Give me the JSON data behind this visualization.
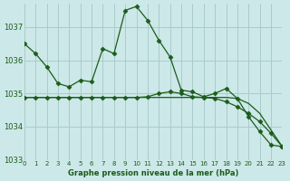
{
  "title": "Graphe pression niveau de la mer (hPa)",
  "background_color": "#cde8e8",
  "grid_color": "#aacccc",
  "line_color": "#1a5c1a",
  "text_color": "#1a5c1a",
  "xlim": [
    0,
    23
  ],
  "ylim": [
    1033,
    1037.7
  ],
  "yticks": [
    1033,
    1034,
    1035,
    1036,
    1037
  ],
  "xticks": [
    0,
    1,
    2,
    3,
    4,
    5,
    6,
    7,
    8,
    9,
    10,
    11,
    12,
    13,
    14,
    15,
    16,
    17,
    18,
    19,
    20,
    21,
    22,
    23
  ],
  "series1_x": [
    0,
    1,
    2,
    3,
    4,
    5,
    6,
    7,
    8,
    9,
    10,
    11,
    12,
    13,
    14,
    15,
    16,
    17,
    18,
    19,
    20,
    21,
    22,
    23
  ],
  "series1_y": [
    1036.5,
    1036.2,
    1035.8,
    1035.3,
    1035.2,
    1035.4,
    1035.35,
    1036.35,
    1036.2,
    1037.5,
    1037.62,
    1037.2,
    1036.6,
    1036.1,
    1035.1,
    1035.05,
    1034.9,
    1035.0,
    1035.15,
    1034.85,
    1034.3,
    1033.85,
    1033.45,
    1033.4
  ],
  "series2_x": [
    0,
    1,
    2,
    3,
    4,
    5,
    6,
    7,
    8,
    9,
    10,
    11,
    12,
    13,
    14,
    15,
    16,
    17,
    18,
    19,
    20,
    21,
    22,
    23
  ],
  "series2_y": [
    1034.88,
    1034.88,
    1034.88,
    1034.88,
    1034.88,
    1034.88,
    1034.88,
    1034.88,
    1034.88,
    1034.88,
    1034.88,
    1034.9,
    1035.0,
    1035.05,
    1035.0,
    1034.9,
    1034.88,
    1034.85,
    1034.75,
    1034.6,
    1034.4,
    1034.15,
    1033.8,
    1033.4
  ],
  "series3_x": [
    0,
    1,
    2,
    3,
    4,
    5,
    6,
    7,
    8,
    9,
    10,
    11,
    12,
    13,
    14,
    15,
    16,
    17,
    18,
    19,
    20,
    21,
    22,
    23
  ],
  "series3_y": [
    1034.88,
    1034.88,
    1034.88,
    1034.88,
    1034.88,
    1034.88,
    1034.88,
    1034.88,
    1034.88,
    1034.88,
    1034.88,
    1034.88,
    1034.88,
    1034.88,
    1034.88,
    1034.88,
    1034.88,
    1034.88,
    1034.88,
    1034.85,
    1034.7,
    1034.4,
    1033.9,
    1033.4
  ]
}
